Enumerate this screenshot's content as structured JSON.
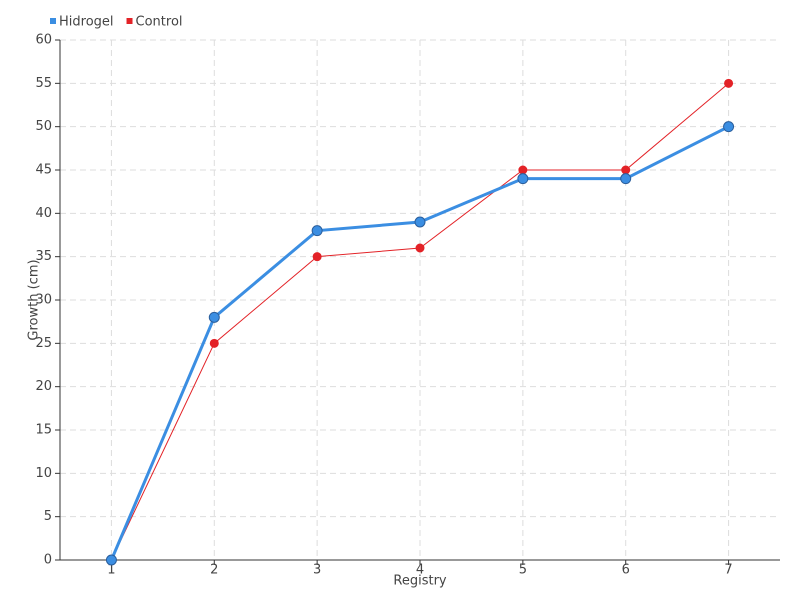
{
  "chart_data": {
    "type": "line",
    "x": [
      1,
      2,
      3,
      4,
      5,
      6,
      7
    ],
    "xlim": [
      0.5,
      7.5
    ],
    "xticks": [
      1,
      2,
      3,
      4,
      5,
      6,
      7
    ],
    "ylim": [
      0,
      60
    ],
    "yticks": [
      0,
      5,
      10,
      15,
      20,
      25,
      30,
      35,
      40,
      45,
      50,
      55,
      60
    ],
    "x_label": "Registry",
    "y_label": "Growth (cm)",
    "grid": true,
    "legend": "top-left",
    "series": [
      {
        "name": "Hidrogel",
        "color": "#3b8ee2",
        "values": [
          0,
          28,
          38,
          39,
          44,
          44,
          50
        ]
      },
      {
        "name": "Control",
        "color": "#e32227",
        "values": [
          0,
          25,
          35,
          36,
          45,
          45,
          55
        ]
      }
    ]
  }
}
